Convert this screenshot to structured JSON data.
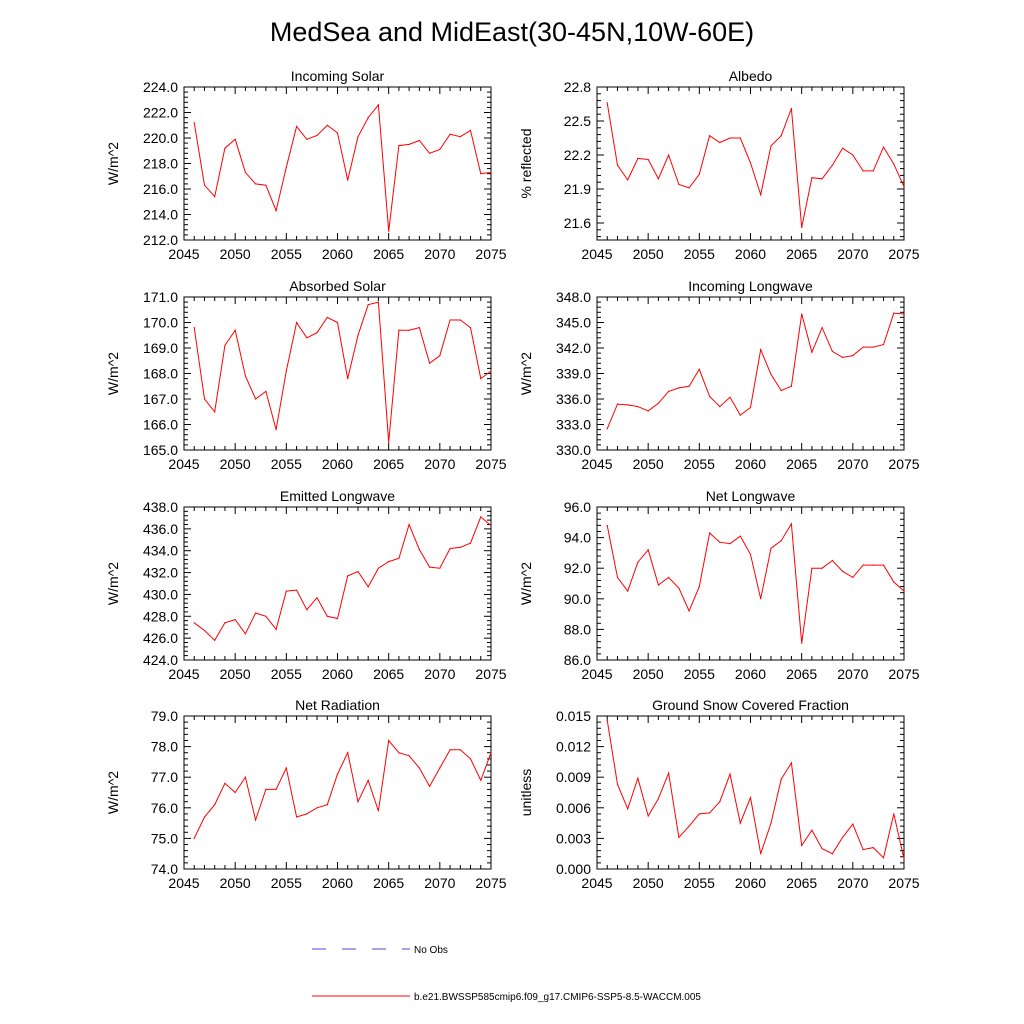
{
  "figure": {
    "title": "MedSea and MidEast(30-45N,10W-60E)"
  },
  "legend": {
    "entries": [
      {
        "label": "No Obs",
        "style": "dashed",
        "color": "#4b4bd6"
      },
      {
        "label": "b.e21.BWSSP585cmip6.f09_g17.CMIP6-SSP5-8.5-WACCM.005",
        "style": "solid",
        "color": "#ff0000"
      }
    ]
  },
  "chart_data": [
    {
      "type": "line",
      "title": "Incoming Solar",
      "xlabel": "",
      "ylabel": "W/m^2",
      "xlim": [
        2045,
        2075
      ],
      "ylim": [
        212.0,
        224.0
      ],
      "xticks": [
        "2045",
        "2050",
        "2055",
        "2060",
        "2065",
        "2070",
        "2075"
      ],
      "yticks": [
        "212.0",
        "214.0",
        "216.0",
        "218.0",
        "220.0",
        "222.0",
        "224.0"
      ],
      "x": [
        2046,
        2047,
        2048,
        2049,
        2050,
        2051,
        2052,
        2053,
        2054,
        2055,
        2056,
        2057,
        2058,
        2059,
        2060,
        2061,
        2062,
        2063,
        2064,
        2065,
        2066,
        2067,
        2068,
        2069,
        2070,
        2071,
        2072,
        2073,
        2074,
        2075
      ],
      "series": [
        {
          "color": "#ff0000",
          "values": [
            221.2,
            216.3,
            215.4,
            219.2,
            219.9,
            217.3,
            216.4,
            216.3,
            214.3,
            217.7,
            220.9,
            219.9,
            220.2,
            221.0,
            220.4,
            216.7,
            220.1,
            221.6,
            222.6,
            212.7,
            219.4,
            219.5,
            219.8,
            218.8,
            219.1,
            220.3,
            220.1,
            220.6,
            217.2,
            217.3
          ]
        }
      ]
    },
    {
      "type": "line",
      "title": "Albedo",
      "xlabel": "",
      "ylabel": "% reflected",
      "xlim": [
        2045,
        2075
      ],
      "ylim": [
        21.45,
        22.8
      ],
      "xticks": [
        "2045",
        "2050",
        "2055",
        "2060",
        "2065",
        "2070",
        "2075"
      ],
      "yticks": [
        "21.6",
        "21.9",
        "22.2",
        "22.5",
        "22.8"
      ],
      "x": [
        2046,
        2047,
        2048,
        2049,
        2050,
        2051,
        2052,
        2053,
        2054,
        2055,
        2056,
        2057,
        2058,
        2059,
        2060,
        2061,
        2062,
        2063,
        2064,
        2065,
        2066,
        2067,
        2068,
        2069,
        2070,
        2071,
        2072,
        2073,
        2074,
        2075
      ],
      "series": [
        {
          "color": "#ff0000",
          "values": [
            22.66,
            22.11,
            21.98,
            22.17,
            22.16,
            21.99,
            22.2,
            21.94,
            21.91,
            22.03,
            22.37,
            22.31,
            22.35,
            22.35,
            22.13,
            21.85,
            22.28,
            22.37,
            22.61,
            21.56,
            22.0,
            21.99,
            22.11,
            22.26,
            22.2,
            22.06,
            22.06,
            22.27,
            22.12,
            21.92
          ]
        }
      ]
    },
    {
      "type": "line",
      "title": "Absorbed Solar",
      "xlabel": "",
      "ylabel": "W/m^2",
      "xlim": [
        2045,
        2075
      ],
      "ylim": [
        165.0,
        171.0
      ],
      "xticks": [
        "2045",
        "2050",
        "2055",
        "2060",
        "2065",
        "2070",
        "2075"
      ],
      "yticks": [
        "165.0",
        "166.0",
        "167.0",
        "168.0",
        "169.0",
        "170.0",
        "171.0"
      ],
      "x": [
        2046,
        2047,
        2048,
        2049,
        2050,
        2051,
        2052,
        2053,
        2054,
        2055,
        2056,
        2057,
        2058,
        2059,
        2060,
        2061,
        2062,
        2063,
        2064,
        2065,
        2066,
        2067,
        2068,
        2069,
        2070,
        2071,
        2072,
        2073,
        2074,
        2075
      ],
      "series": [
        {
          "color": "#ff0000",
          "values": [
            169.8,
            167.0,
            166.5,
            169.1,
            169.7,
            167.9,
            167.0,
            167.3,
            165.8,
            168.1,
            170.0,
            169.4,
            169.6,
            170.2,
            170.0,
            167.8,
            169.5,
            170.7,
            170.8,
            165.3,
            169.7,
            169.7,
            169.8,
            168.4,
            168.7,
            170.1,
            170.1,
            169.8,
            167.8,
            168.1
          ]
        }
      ]
    },
    {
      "type": "line",
      "title": "Incoming Longwave",
      "xlabel": "",
      "ylabel": "W/m^2",
      "xlim": [
        2045,
        2075
      ],
      "ylim": [
        330.0,
        348.0
      ],
      "xticks": [
        "2045",
        "2050",
        "2055",
        "2060",
        "2065",
        "2070",
        "2075"
      ],
      "yticks": [
        "330.0",
        "333.0",
        "336.0",
        "339.0",
        "342.0",
        "345.0",
        "348.0"
      ],
      "x": [
        2046,
        2047,
        2048,
        2049,
        2050,
        2051,
        2052,
        2053,
        2054,
        2055,
        2056,
        2057,
        2058,
        2059,
        2060,
        2061,
        2062,
        2063,
        2064,
        2065,
        2066,
        2067,
        2068,
        2069,
        2070,
        2071,
        2072,
        2073,
        2074,
        2075
      ],
      "series": [
        {
          "color": "#ff0000",
          "values": [
            332.5,
            335.4,
            335.3,
            335.1,
            334.6,
            335.5,
            336.9,
            337.3,
            337.5,
            339.5,
            336.3,
            335.1,
            336.2,
            334.1,
            335.0,
            341.8,
            338.9,
            337.0,
            337.5,
            346.0,
            341.5,
            344.4,
            341.6,
            340.9,
            341.1,
            342.1,
            342.1,
            342.4,
            346.1,
            346.0
          ]
        }
      ]
    },
    {
      "type": "line",
      "title": "Emitted Longwave",
      "xlabel": "",
      "ylabel": "W/m^2",
      "xlim": [
        2045,
        2075
      ],
      "ylim": [
        424.0,
        438.0
      ],
      "xticks": [
        "2045",
        "2050",
        "2055",
        "2060",
        "2065",
        "2070",
        "2075"
      ],
      "yticks": [
        "424.0",
        "426.0",
        "428.0",
        "430.0",
        "432.0",
        "434.0",
        "436.0",
        "438.0"
      ],
      "x": [
        2046,
        2047,
        2048,
        2049,
        2050,
        2051,
        2052,
        2053,
        2054,
        2055,
        2056,
        2057,
        2058,
        2059,
        2060,
        2061,
        2062,
        2063,
        2064,
        2065,
        2066,
        2067,
        2068,
        2069,
        2070,
        2071,
        2072,
        2073,
        2074,
        2075
      ],
      "series": [
        {
          "color": "#ff0000",
          "values": [
            427.4,
            426.7,
            425.8,
            427.4,
            427.7,
            426.4,
            428.3,
            428.0,
            426.8,
            430.3,
            430.4,
            428.6,
            429.7,
            428.0,
            427.8,
            431.7,
            432.1,
            430.7,
            432.4,
            433.0,
            433.3,
            436.4,
            434.1,
            432.5,
            432.4,
            434.2,
            434.3,
            434.7,
            437.1,
            436.3
          ]
        }
      ]
    },
    {
      "type": "line",
      "title": "Net Longwave",
      "xlabel": "",
      "ylabel": "W/m^2",
      "xlim": [
        2045,
        2075
      ],
      "ylim": [
        86.0,
        96.0
      ],
      "xticks": [
        "2045",
        "2050",
        "2055",
        "2060",
        "2065",
        "2070",
        "2075"
      ],
      "yticks": [
        "86.0",
        "88.0",
        "90.0",
        "92.0",
        "94.0",
        "96.0"
      ],
      "x": [
        2046,
        2047,
        2048,
        2049,
        2050,
        2051,
        2052,
        2053,
        2054,
        2055,
        2056,
        2057,
        2058,
        2059,
        2060,
        2061,
        2062,
        2063,
        2064,
        2065,
        2066,
        2067,
        2068,
        2069,
        2070,
        2071,
        2072,
        2073,
        2074,
        2075
      ],
      "series": [
        {
          "color": "#ff0000",
          "values": [
            94.8,
            91.4,
            90.5,
            92.4,
            93.2,
            90.9,
            91.4,
            90.7,
            89.2,
            90.8,
            94.3,
            93.7,
            93.6,
            94.1,
            92.9,
            90.0,
            93.3,
            93.8,
            94.9,
            87.1,
            92.0,
            92.0,
            92.5,
            91.8,
            91.4,
            92.2,
            92.2,
            92.2,
            91.1,
            90.5
          ]
        }
      ]
    },
    {
      "type": "line",
      "title": "Net Radiation",
      "xlabel": "",
      "ylabel": "W/m^2",
      "xlim": [
        2045,
        2075
      ],
      "ylim": [
        74.0,
        79.0
      ],
      "xticks": [
        "2045",
        "2050",
        "2055",
        "2060",
        "2065",
        "2070",
        "2075"
      ],
      "yticks": [
        "74.0",
        "75.0",
        "76.0",
        "77.0",
        "78.0",
        "79.0"
      ],
      "x": [
        2046,
        2047,
        2048,
        2049,
        2050,
        2051,
        2052,
        2053,
        2054,
        2055,
        2056,
        2057,
        2058,
        2059,
        2060,
        2061,
        2062,
        2063,
        2064,
        2065,
        2066,
        2067,
        2068,
        2069,
        2070,
        2071,
        2072,
        2073,
        2074,
        2075
      ],
      "series": [
        {
          "color": "#ff0000",
          "values": [
            75.0,
            75.7,
            76.1,
            76.8,
            76.5,
            77.0,
            75.6,
            76.6,
            76.6,
            77.3,
            75.7,
            75.8,
            76.0,
            76.1,
            77.1,
            77.8,
            76.2,
            76.9,
            75.9,
            78.2,
            77.8,
            77.7,
            77.3,
            76.7,
            77.3,
            77.9,
            77.9,
            77.6,
            76.9,
            77.8
          ]
        }
      ]
    },
    {
      "type": "line",
      "title": "Ground Snow Covered Fraction",
      "xlabel": "",
      "ylabel": "unitless",
      "xlim": [
        2045,
        2075
      ],
      "ylim": [
        0.0,
        0.015
      ],
      "xticks": [
        "2045",
        "2050",
        "2055",
        "2060",
        "2065",
        "2070",
        "2075"
      ],
      "yticks": [
        "0.000",
        "0.003",
        "0.006",
        "0.009",
        "0.012",
        "0.015"
      ],
      "x": [
        2046,
        2047,
        2048,
        2049,
        2050,
        2051,
        2052,
        2053,
        2054,
        2055,
        2056,
        2057,
        2058,
        2059,
        2060,
        2061,
        2062,
        2063,
        2064,
        2065,
        2066,
        2067,
        2068,
        2069,
        2070,
        2071,
        2072,
        2073,
        2074,
        2075
      ],
      "series": [
        {
          "color": "#ff0000",
          "values": [
            0.0146,
            0.0083,
            0.0059,
            0.0089,
            0.0052,
            0.0069,
            0.0094,
            0.0031,
            0.0042,
            0.0054,
            0.0055,
            0.0066,
            0.0093,
            0.0045,
            0.007,
            0.0015,
            0.0045,
            0.0088,
            0.0104,
            0.0023,
            0.0038,
            0.002,
            0.0015,
            0.0031,
            0.0044,
            0.0019,
            0.0021,
            0.0011,
            0.0054,
            0.001
          ]
        }
      ]
    }
  ]
}
